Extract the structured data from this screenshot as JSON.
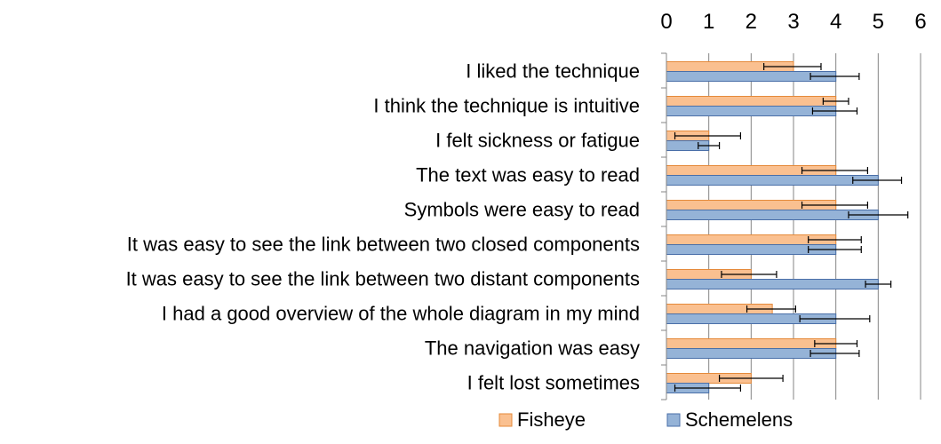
{
  "chart_data": {
    "type": "bar",
    "orientation": "horizontal",
    "categories": [
      "I liked the technique",
      "I think the technique is intuitive",
      "I felt sickness or fatigue",
      "The text was easy to read",
      "Symbols were easy to read",
      "It was easy to see the link between two closed components",
      "It was easy to see the link between two distant components",
      "I had a good overview of the whole diagram in my mind",
      "The navigation was easy",
      "I felt lost sometimes"
    ],
    "series": [
      {
        "name": "Fisheye",
        "color": "#fac090",
        "values": [
          3.0,
          4.0,
          1.0,
          4.0,
          4.0,
          4.0,
          2.0,
          2.5,
          4.0,
          2.0
        ],
        "error_low": [
          2.3,
          3.7,
          0.2,
          3.2,
          3.2,
          3.35,
          1.3,
          1.9,
          3.5,
          1.25
        ],
        "error_high": [
          3.65,
          4.3,
          1.75,
          4.75,
          4.75,
          4.6,
          2.6,
          3.05,
          4.5,
          2.75
        ]
      },
      {
        "name": "Schemelens",
        "color": "#95b3d7",
        "values": [
          4.0,
          4.0,
          1.0,
          5.0,
          5.0,
          4.0,
          5.0,
          4.0,
          4.0,
          1.0
        ],
        "error_low": [
          3.4,
          3.45,
          0.75,
          4.4,
          4.3,
          3.35,
          4.7,
          3.15,
          3.4,
          0.2
        ],
        "error_high": [
          4.55,
          4.5,
          1.25,
          5.55,
          5.7,
          4.6,
          5.3,
          4.8,
          4.55,
          1.75
        ]
      }
    ],
    "xlim": [
      0,
      6
    ],
    "xticks": [
      "0",
      "1",
      "2",
      "3",
      "4",
      "5",
      "6"
    ],
    "x_axis_position": "top",
    "grid": true,
    "legend_position": "bottom"
  }
}
